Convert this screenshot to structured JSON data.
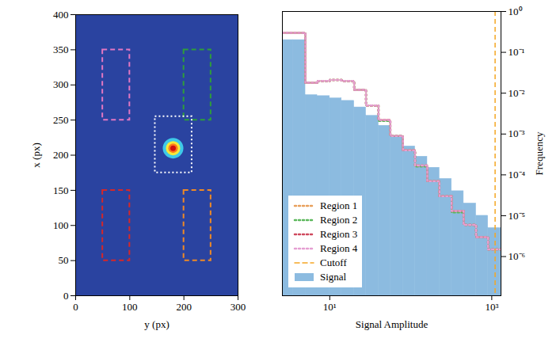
{
  "chart_data": [
    {
      "type": "image",
      "xlabel": "y (px)",
      "ylabel": "x (px)",
      "xlim": [
        0,
        300
      ],
      "ylim": [
        0,
        400
      ],
      "xticks": [
        0,
        100,
        200,
        300
      ],
      "yticks": [
        0,
        50,
        100,
        150,
        200,
        250,
        300,
        350,
        400
      ],
      "rectangles": [
        {
          "color": "#e377c2",
          "line_style": "dashed",
          "x": [
            50,
            100
          ],
          "y": [
            250,
            350
          ]
        },
        {
          "color": "#2e9e3a",
          "line_style": "dashed",
          "x": [
            200,
            250
          ],
          "y": [
            250,
            350
          ]
        },
        {
          "color": "#d62728",
          "line_style": "dashed",
          "x": [
            50,
            100
          ],
          "y": [
            50,
            150
          ]
        },
        {
          "color": "#f08a24",
          "line_style": "dashed",
          "x": [
            200,
            250
          ],
          "y": [
            50,
            150
          ]
        },
        {
          "color": "#ffffff",
          "line_style": "dotted",
          "x": [
            147,
            215
          ],
          "y": [
            175,
            255
          ]
        }
      ],
      "source": {
        "x": 180,
        "y": 210
      }
    },
    {
      "type": "histogram",
      "xlabel": "Signal Amplitude",
      "ylabel": "Frequency",
      "log": true,
      "xlim": [
        2.6,
        1300
      ],
      "ylim": [
        1.1e-07,
        1
      ],
      "xticks": [
        {
          "value": 10,
          "label": "10¹"
        },
        {
          "value": 1000,
          "label": "10³"
        }
      ],
      "yticks": [
        {
          "value": 1e-06,
          "label": "10⁻⁶"
        },
        {
          "value": 1e-05,
          "label": "10⁻⁵"
        },
        {
          "value": 0.0001,
          "label": "10⁻⁴"
        },
        {
          "value": 0.001,
          "label": "10⁻³"
        },
        {
          "value": 0.01,
          "label": "10⁻²"
        },
        {
          "value": 0.1,
          "label": "10⁻¹"
        },
        {
          "value": 1,
          "label": "10⁰"
        }
      ],
      "bins": [
        2.6,
        3.5,
        5,
        7,
        10,
        14,
        20,
        28,
        40,
        56,
        80,
        113,
        160,
        226,
        320,
        450,
        640,
        900,
        1300
      ],
      "legend": "lower left",
      "series": [
        {
          "name": "Region 1",
          "type": "line",
          "line_style": "dotted",
          "color": "#e8a05c",
          "values": [
            0.3,
            0.3,
            0.018,
            0.02,
            0.021,
            0.02,
            0.012,
            0.005,
            0.0022,
            0.0009,
            0.0004,
            0.00017,
            7e-05,
            3e-05,
            1.3e-05,
            6e-06,
            3e-06,
            1.5e-06
          ]
        },
        {
          "name": "Region 2",
          "type": "line",
          "line_style": "dotted",
          "color": "#5cb85c",
          "values": [
            0.3,
            0.3,
            0.018,
            0.02,
            0.021,
            0.02,
            0.012,
            0.005,
            0.0021,
            0.0009,
            0.0004,
            0.00016,
            7e-05,
            3e-05,
            1.2e-05,
            6e-06,
            3e-06,
            1.5e-06
          ]
        },
        {
          "name": "Region 3",
          "type": "line",
          "line_style": "dotted",
          "color": "#cf4a5e",
          "values": [
            0.3,
            0.3,
            0.018,
            0.02,
            0.021,
            0.02,
            0.012,
            0.005,
            0.0022,
            0.0009,
            0.0004,
            0.00017,
            7e-05,
            3e-05,
            1.3e-05,
            6e-06,
            3e-06,
            1.5e-06
          ]
        },
        {
          "name": "Region 4",
          "type": "line",
          "line_style": "dotted",
          "color": "#e59fd2",
          "values": [
            0.3,
            0.3,
            0.018,
            0.02,
            0.021,
            0.02,
            0.012,
            0.005,
            0.0022,
            0.0009,
            0.0004,
            0.00017,
            7e-05,
            3e-05,
            1.3e-05,
            6e-06,
            3e-06,
            1.5e-06
          ]
        },
        {
          "name": "Signal",
          "type": "area",
          "color": "#8cbbe0",
          "values": [
            0.2,
            0.2,
            0.009,
            0.0085,
            0.0075,
            0.0065,
            0.0045,
            0.0028,
            0.0016,
            0.0009,
            0.0005,
            0.00028,
            0.00015,
            8e-05,
            4e-05,
            2e-05,
            1e-05,
            5e-06
          ]
        }
      ],
      "cutoff": {
        "name": "Cutoff",
        "value": 1100,
        "color": "#f5a623",
        "line_style": "dashed"
      }
    }
  ]
}
